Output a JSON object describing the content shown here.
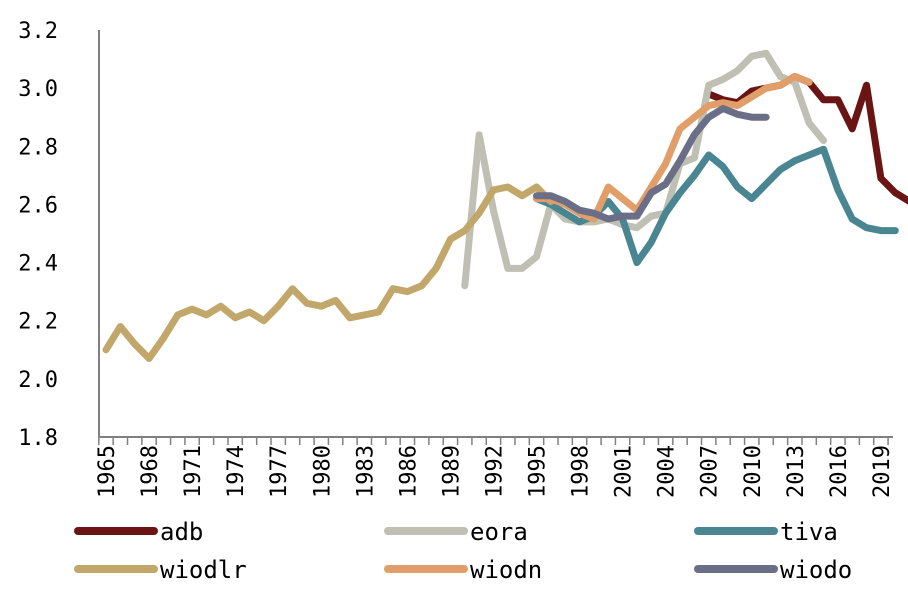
{
  "chart_data": {
    "type": "line",
    "title": "",
    "xlabel": "",
    "ylabel": "",
    "xlim": [
      1965,
      2021
    ],
    "ylim": [
      1.8,
      3.2
    ],
    "yticks": [
      "1.8",
      "2.0",
      "2.2",
      "2.4",
      "2.6",
      "2.8",
      "3.0",
      "3.2"
    ],
    "xticks": [
      "1965",
      "1968",
      "1971",
      "1974",
      "1977",
      "1980",
      "1983",
      "1986",
      "1989",
      "1992",
      "1995",
      "1998",
      "2001",
      "2004",
      "2007",
      "2010",
      "2013",
      "2016",
      "2019"
    ],
    "grid": false,
    "legend_position": "bottom",
    "series": [
      {
        "name": "adb",
        "color": "#6b1414",
        "x": [
          2007,
          2008,
          2009,
          2010,
          2011,
          2012,
          2013,
          2014,
          2015,
          2016,
          2017,
          2018,
          2019,
          2020,
          2021
        ],
        "y": [
          2.98,
          2.96,
          2.95,
          2.99,
          3.0,
          3.01,
          3.04,
          3.02,
          2.96,
          2.96,
          2.86,
          3.01,
          2.69,
          2.64,
          2.61
        ]
      },
      {
        "name": "eora",
        "color": "#bfc0b3",
        "x": [
          1990,
          1991,
          1992,
          1993,
          1994,
          1995,
          1996,
          1997,
          1998,
          1999,
          2000,
          2001,
          2002,
          2003,
          2004,
          2005,
          2006,
          2007,
          2008,
          2009,
          2010,
          2011,
          2012,
          2013,
          2014,
          2015
        ],
        "y": [
          2.32,
          2.84,
          2.58,
          2.38,
          2.38,
          2.42,
          2.6,
          2.55,
          2.54,
          2.54,
          2.55,
          2.53,
          2.52,
          2.56,
          2.57,
          2.74,
          2.76,
          3.01,
          3.03,
          3.06,
          3.11,
          3.12,
          3.04,
          3.02,
          2.88,
          2.82
        ]
      },
      {
        "name": "tiva",
        "color": "#4a8592",
        "x": [
          1995,
          1996,
          1997,
          1998,
          1999,
          2000,
          2001,
          2002,
          2003,
          2004,
          2005,
          2006,
          2007,
          2008,
          2009,
          2010,
          2011,
          2012,
          2013,
          2014,
          2015,
          2016,
          2017,
          2018,
          2019,
          2020
        ],
        "y": [
          2.62,
          2.6,
          2.57,
          2.54,
          2.56,
          2.61,
          2.55,
          2.4,
          2.47,
          2.57,
          2.64,
          2.7,
          2.77,
          2.73,
          2.66,
          2.62,
          2.67,
          2.72,
          2.75,
          2.77,
          2.79,
          2.65,
          2.55,
          2.52,
          2.51,
          2.51
        ]
      },
      {
        "name": "wiodlr",
        "color": "#c2a76a",
        "x": [
          1965,
          1966,
          1967,
          1968,
          1969,
          1970,
          1971,
          1972,
          1973,
          1974,
          1975,
          1976,
          1977,
          1978,
          1979,
          1980,
          1981,
          1982,
          1983,
          1984,
          1985,
          1986,
          1987,
          1988,
          1989,
          1990,
          1991,
          1992,
          1993,
          1994,
          1995,
          1996
        ],
        "y": [
          2.1,
          2.18,
          2.12,
          2.07,
          2.14,
          2.22,
          2.24,
          2.22,
          2.25,
          2.21,
          2.23,
          2.2,
          2.25,
          2.31,
          2.26,
          2.25,
          2.27,
          2.21,
          2.22,
          2.23,
          2.31,
          2.3,
          2.32,
          2.38,
          2.48,
          2.51,
          2.57,
          2.65,
          2.66,
          2.63,
          2.66,
          2.61
        ]
      },
      {
        "name": "wiodn",
        "color": "#e19e69",
        "x": [
          1995,
          1996,
          1997,
          1998,
          1999,
          2000,
          2001,
          2002,
          2003,
          2004,
          2005,
          2006,
          2007,
          2008,
          2009,
          2010,
          2011,
          2012,
          2013,
          2014
        ],
        "y": [
          2.62,
          2.62,
          2.6,
          2.57,
          2.55,
          2.66,
          2.62,
          2.58,
          2.66,
          2.74,
          2.86,
          2.9,
          2.94,
          2.95,
          2.94,
          2.97,
          3.0,
          3.01,
          3.04,
          3.02
        ]
      },
      {
        "name": "wiodo",
        "color": "#6a6f87",
        "x": [
          1995,
          1996,
          1997,
          1998,
          1999,
          2000,
          2001,
          2002,
          2003,
          2004,
          2005,
          2006,
          2007,
          2008,
          2009,
          2010,
          2011
        ],
        "y": [
          2.63,
          2.63,
          2.61,
          2.58,
          2.57,
          2.55,
          2.56,
          2.56,
          2.64,
          2.67,
          2.75,
          2.84,
          2.9,
          2.93,
          2.91,
          2.9,
          2.9
        ]
      }
    ]
  }
}
